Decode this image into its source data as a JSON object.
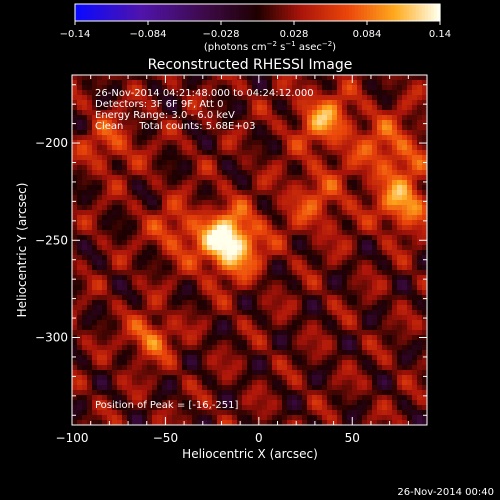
{
  "chart_data": {
    "type": "heatmap",
    "title": "Reconstructed RHESSI Image",
    "xlabel": "Heliocentric X (arcsec)",
    "ylabel": "Heliocentric Y (arcsec)",
    "xlim": [
      -100,
      90
    ],
    "ylim": [
      -345,
      -165
    ],
    "x_ticks": [
      -100,
      -50,
      0,
      50
    ],
    "y_ticks": [
      -200,
      -250,
      -300
    ],
    "colorbar": {
      "label_parts": [
        "(photons cm",
        "−2",
        " s",
        "−1",
        " asec",
        "−2",
        ")"
      ],
      "ticks": [
        "−0.14",
        "−0.084",
        "−0.028",
        "0.028",
        "0.084",
        "0.14"
      ],
      "range": [
        -0.14,
        0.14
      ],
      "colormap": "blue-purple-red-orange-yellow-white"
    },
    "annotations": [
      "26-Nov-2014 04:21:48.000 to 04:24:12.000",
      "Detectors: 3F 6F 9F, Att 0",
      "Energy Range: 3.0 - 6.0 keV",
      "Clean     Total counts: 5.68E+03"
    ],
    "peak_label": "Position of Peak = [-16,-251]",
    "peak": [
      -16,
      -251
    ],
    "sources": [
      {
        "x": -16,
        "y": -251,
        "sigma": 11,
        "amp": 0.14
      },
      {
        "x": 35,
        "y": -188,
        "sigma": 10,
        "amp": 0.08
      },
      {
        "x": 78,
        "y": -232,
        "sigma": 9,
        "amp": 0.085
      },
      {
        "x": 70,
        "y": -205,
        "sigma": 13,
        "amp": 0.06
      },
      {
        "x": -58,
        "y": -300,
        "sigma": 8,
        "amp": 0.07
      },
      {
        "x": -45,
        "y": -245,
        "sigma": 9,
        "amp": 0.05
      },
      {
        "x": 30,
        "y": -230,
        "sigma": 12,
        "amp": 0.045
      },
      {
        "x": -80,
        "y": -200,
        "sigma": 10,
        "amp": 0.045
      }
    ]
  },
  "footer": {
    "timestamp": "26-Nov-2014 00:40"
  }
}
